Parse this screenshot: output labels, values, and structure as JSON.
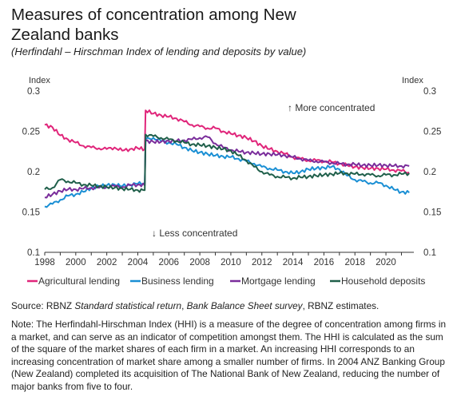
{
  "title": "Measures of concentration among New Zealand banks",
  "subtitle": "(Herfindahl – Hirschman Index of lending and deposits by value)",
  "source_prefix": "Source: RBNZ ",
  "source_italic_1": "Standard statistical return",
  "source_mid": ", ",
  "source_italic_2": "Bank Balance Sheet survey",
  "source_suffix": ", RBNZ estimates.",
  "note": "Note: The Herfindahl-Hirschman Index (HHI) is a measure of the degree of concentration among firms in a market, and can serve as an indicator of competition amongst them. The HHI is calculated as the sum of the square of the market shares of each firm in a market. An increasing HHI corresponds to an increasing concentration of market share among a smaller number of firms. In 2004 ANZ Banking Group (New Zealand) completed its acquisition of The National Bank of New Zealand, reducing the number of major banks from five to four.",
  "chart_data": {
    "type": "line",
    "ylabel_left": "Index",
    "ylabel_right": "Index",
    "ylim": [
      0.1,
      0.3
    ],
    "xlim": [
      1998,
      2021.8
    ],
    "yticks": [
      "0.1",
      "0.15",
      "0.2",
      "0.25",
      "0.3"
    ],
    "xticks": [
      "1998",
      "2000",
      "2002",
      "2004",
      "2006",
      "2008",
      "2010",
      "2012",
      "2014",
      "2016",
      "2018",
      "2020"
    ],
    "annotations": [
      "↑ More concentrated",
      "↓ Less concentrated"
    ],
    "legend_position": "bottom",
    "series": [
      {
        "name": "Agricultural lending",
        "color": "#e0257a",
        "x": [
          1998.0,
          1998.5,
          1999.0,
          1999.5,
          2000.0,
          2000.5,
          2001.0,
          2001.5,
          2002.0,
          2002.5,
          2003.0,
          2003.5,
          2004.0,
          2004.45,
          2004.5,
          2005.0,
          2005.5,
          2006.0,
          2006.5,
          2007.0,
          2007.5,
          2008.0,
          2008.5,
          2009.0,
          2009.5,
          2010.0,
          2010.5,
          2011.0,
          2011.5,
          2012.0,
          2012.5,
          2013.0,
          2013.5,
          2014.0,
          2014.5,
          2015.0,
          2015.5,
          2016.0,
          2016.5,
          2017.0,
          2017.5,
          2018.0,
          2018.5,
          2019.0,
          2019.5,
          2020.0,
          2020.5,
          2021.0,
          2021.5
        ],
        "values": [
          0.258,
          0.255,
          0.245,
          0.24,
          0.236,
          0.232,
          0.23,
          0.229,
          0.228,
          0.23,
          0.226,
          0.228,
          0.229,
          0.228,
          0.276,
          0.272,
          0.27,
          0.268,
          0.266,
          0.262,
          0.258,
          0.256,
          0.254,
          0.254,
          0.25,
          0.247,
          0.245,
          0.242,
          0.238,
          0.232,
          0.228,
          0.225,
          0.222,
          0.218,
          0.216,
          0.214,
          0.214,
          0.213,
          0.212,
          0.21,
          0.208,
          0.206,
          0.205,
          0.204,
          0.204,
          0.203,
          0.202,
          0.201,
          0.199
        ]
      },
      {
        "name": "Business lending",
        "color": "#1a8fd4",
        "x": [
          1998.0,
          1998.5,
          1999.0,
          1999.5,
          2000.0,
          2000.5,
          2001.0,
          2001.5,
          2002.0,
          2002.5,
          2003.0,
          2003.5,
          2004.0,
          2004.45,
          2004.5,
          2005.0,
          2005.5,
          2006.0,
          2006.5,
          2007.0,
          2007.5,
          2008.0,
          2008.5,
          2009.0,
          2009.5,
          2010.0,
          2010.5,
          2011.0,
          2011.5,
          2012.0,
          2012.5,
          2013.0,
          2013.5,
          2014.0,
          2014.5,
          2015.0,
          2015.5,
          2016.0,
          2016.5,
          2017.0,
          2017.5,
          2018.0,
          2018.5,
          2019.0,
          2019.5,
          2020.0,
          2020.5,
          2021.0,
          2021.5
        ],
        "values": [
          0.157,
          0.16,
          0.165,
          0.17,
          0.172,
          0.175,
          0.18,
          0.182,
          0.183,
          0.184,
          0.182,
          0.184,
          0.185,
          0.186,
          0.24,
          0.242,
          0.238,
          0.236,
          0.234,
          0.23,
          0.226,
          0.224,
          0.222,
          0.22,
          0.219,
          0.218,
          0.216,
          0.213,
          0.21,
          0.206,
          0.204,
          0.202,
          0.2,
          0.198,
          0.2,
          0.203,
          0.204,
          0.205,
          0.206,
          0.203,
          0.195,
          0.19,
          0.188,
          0.186,
          0.186,
          0.183,
          0.178,
          0.175,
          0.174
        ]
      },
      {
        "name": "Mortgage lending",
        "color": "#7a2d9b",
        "x": [
          1998.0,
          1998.5,
          1999.0,
          1999.5,
          2000.0,
          2000.5,
          2001.0,
          2001.5,
          2002.0,
          2002.5,
          2003.0,
          2003.5,
          2004.0,
          2004.45,
          2004.5,
          2005.0,
          2005.5,
          2006.0,
          2006.5,
          2007.0,
          2007.5,
          2008.0,
          2008.5,
          2009.0,
          2009.5,
          2010.0,
          2010.5,
          2011.0,
          2011.5,
          2012.0,
          2012.5,
          2013.0,
          2013.5,
          2014.0,
          2014.5,
          2015.0,
          2015.5,
          2016.0,
          2016.5,
          2017.0,
          2017.5,
          2018.0,
          2018.5,
          2019.0,
          2019.5,
          2020.0,
          2020.5,
          2021.0,
          2021.5
        ],
        "values": [
          0.168,
          0.172,
          0.176,
          0.178,
          0.178,
          0.179,
          0.18,
          0.18,
          0.181,
          0.182,
          0.181,
          0.183,
          0.184,
          0.183,
          0.238,
          0.237,
          0.237,
          0.238,
          0.238,
          0.239,
          0.24,
          0.242,
          0.243,
          0.235,
          0.23,
          0.227,
          0.225,
          0.224,
          0.223,
          0.222,
          0.222,
          0.221,
          0.22,
          0.218,
          0.216,
          0.214,
          0.213,
          0.212,
          0.211,
          0.21,
          0.209,
          0.209,
          0.208,
          0.208,
          0.208,
          0.208,
          0.207,
          0.207,
          0.207
        ]
      },
      {
        "name": "Household deposits",
        "color": "#1f5f4a",
        "x": [
          1998.0,
          1998.5,
          1999.0,
          1999.5,
          2000.0,
          2000.5,
          2001.0,
          2001.5,
          2002.0,
          2002.5,
          2003.0,
          2003.5,
          2004.0,
          2004.45,
          2004.5,
          2005.0,
          2005.5,
          2006.0,
          2006.5,
          2007.0,
          2007.5,
          2008.0,
          2008.5,
          2009.0,
          2009.5,
          2010.0,
          2010.5,
          2011.0,
          2011.5,
          2012.0,
          2012.5,
          2013.0,
          2013.5,
          2014.0,
          2014.5,
          2015.0,
          2015.5,
          2016.0,
          2016.5,
          2017.0,
          2017.5,
          2018.0,
          2018.5,
          2019.0,
          2019.5,
          2020.0,
          2020.5,
          2021.0,
          2021.5
        ],
        "values": [
          0.178,
          0.18,
          0.19,
          0.188,
          0.186,
          0.184,
          0.183,
          0.182,
          0.181,
          0.18,
          0.179,
          0.178,
          0.177,
          0.177,
          0.246,
          0.244,
          0.242,
          0.24,
          0.238,
          0.236,
          0.234,
          0.233,
          0.232,
          0.23,
          0.228,
          0.226,
          0.22,
          0.214,
          0.206,
          0.2,
          0.196,
          0.194,
          0.193,
          0.192,
          0.193,
          0.194,
          0.195,
          0.196,
          0.197,
          0.198,
          0.198,
          0.197,
          0.197,
          0.196,
          0.195,
          0.196,
          0.196,
          0.197,
          0.198
        ]
      }
    ]
  }
}
